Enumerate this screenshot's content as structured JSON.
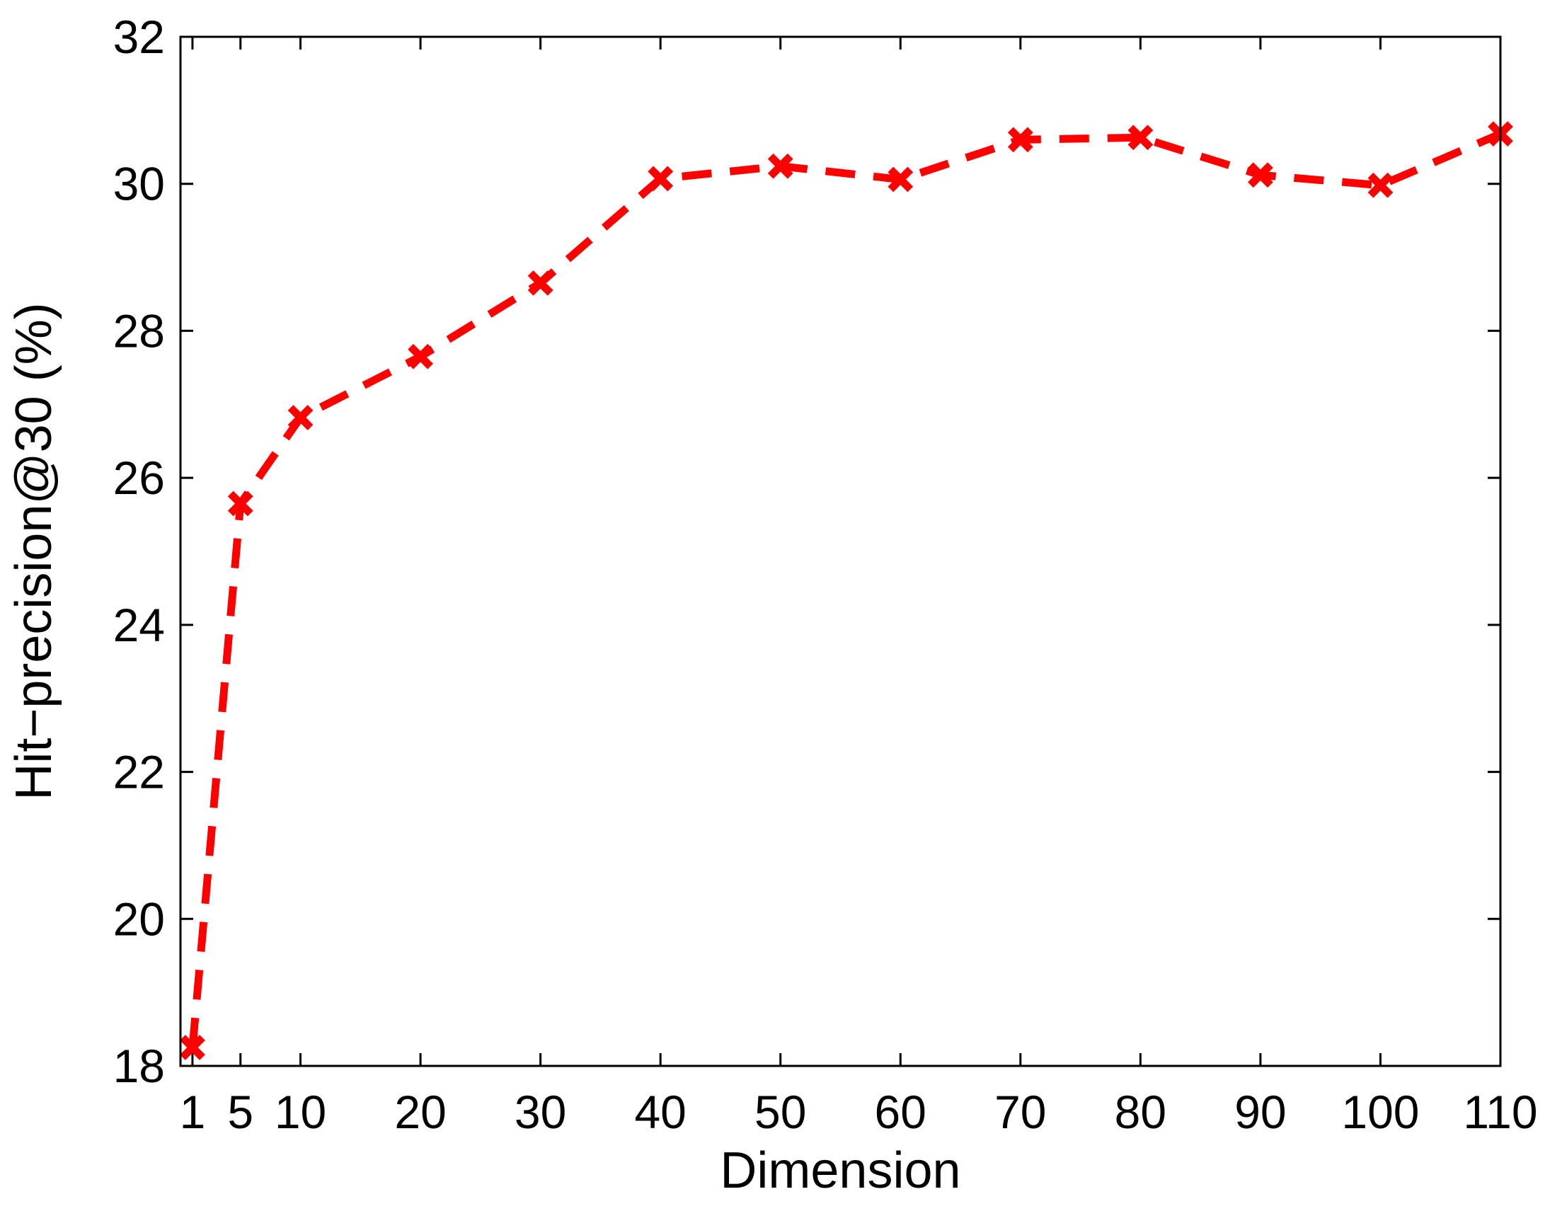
{
  "chart_data": {
    "type": "line",
    "title": "",
    "xlabel": "Dimension",
    "ylabel": "Hit−precision@30 (%)",
    "xlim": [
      0,
      110
    ],
    "ylim": [
      18,
      32
    ],
    "x_ticks": [
      1,
      5,
      10,
      20,
      30,
      40,
      50,
      60,
      70,
      80,
      90,
      100,
      110
    ],
    "x_tick_labels": [
      "1",
      "5",
      "10",
      "20",
      "30",
      "40",
      "50",
      "60",
      "70",
      "80",
      "90",
      "100",
      "110"
    ],
    "y_ticks": [
      18,
      20,
      22,
      24,
      26,
      28,
      30,
      32
    ],
    "y_tick_labels": [
      "18",
      "20",
      "22",
      "24",
      "26",
      "28",
      "30",
      "32"
    ],
    "grid": false,
    "legend": "none",
    "x": [
      1,
      5,
      10,
      20,
      30,
      40,
      50,
      60,
      70,
      80,
      90,
      100,
      110
    ],
    "series": [
      {
        "values": [
          18.25,
          25.65,
          26.82,
          27.65,
          28.65,
          30.07,
          30.24,
          30.06,
          30.6,
          30.63,
          30.12,
          29.98,
          30.68
        ],
        "color": "#ff0000",
        "line_style": "dashed",
        "marker": "x"
      }
    ]
  }
}
